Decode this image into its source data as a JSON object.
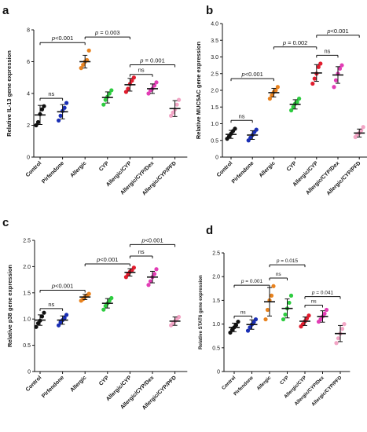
{
  "colors": [
    "#111111",
    "#1a2fb5",
    "#e8821e",
    "#2ecc40",
    "#e11d2e",
    "#e23db5",
    "#f2a5c5"
  ],
  "chart_data": [
    {
      "type": "scatter",
      "panel": "a",
      "ylabel": "Relative IL-13 gene expression",
      "ylim": [
        0,
        8
      ],
      "yticks": [
        0,
        2,
        4,
        6,
        8
      ],
      "categories": [
        "Control",
        "Pirfendone",
        "Allergic",
        "CYP",
        "Allergic/CYP",
        "Allergic/CYP/Dex",
        "Allergic/CYP/PFD"
      ],
      "series": [
        {
          "points": [
            2.0,
            2.2,
            2.7,
            3.0,
            3.2
          ],
          "mean": 2.65,
          "sd": 0.6
        },
        {
          "points": [
            2.3,
            2.6,
            2.9,
            3.1,
            3.4
          ],
          "mean": 2.85,
          "sd": 0.45
        },
        {
          "points": [
            5.6,
            5.8,
            6.0,
            6.1,
            6.7
          ],
          "mean": 6.0,
          "sd": 0.4
        },
        {
          "points": [
            3.3,
            3.6,
            3.8,
            4.0,
            4.2
          ],
          "mean": 3.75,
          "sd": 0.35
        },
        {
          "points": [
            4.1,
            4.3,
            4.6,
            4.8,
            5.0
          ],
          "mean": 4.55,
          "sd": 0.4
        },
        {
          "points": [
            4.0,
            4.2,
            4.3,
            4.5,
            4.7
          ],
          "mean": 4.3,
          "sd": 0.3
        },
        {
          "points": [
            2.6,
            2.8,
            3.0,
            3.3,
            3.6
          ],
          "mean": 3.05,
          "sd": 0.5
        }
      ],
      "brackets": [
        {
          "from": 0,
          "to": 1,
          "y": 3.7,
          "label": "ns"
        },
        {
          "from": 0,
          "to": 2,
          "y": 7.2,
          "label": "p<0.001"
        },
        {
          "from": 2,
          "to": 4,
          "y": 7.55,
          "label": "p = 0.003"
        },
        {
          "from": 4,
          "to": 5,
          "y": 5.2,
          "label": "ns"
        },
        {
          "from": 4,
          "to": 6,
          "y": 5.8,
          "label": "p = 0.001"
        }
      ]
    },
    {
      "type": "scatter",
      "panel": "b",
      "ylabel": "Relative MUC5AC gene expression",
      "ylim": [
        0,
        4
      ],
      "yticks": [
        0,
        0.5,
        1.0,
        1.5,
        2.0,
        2.5,
        3.0,
        3.5,
        4.0
      ],
      "categories": [
        "Control",
        "Pirfendone",
        "Allergic",
        "CYP",
        "Allergic/CYP",
        "Allergic/CYP/Dex",
        "Allergic/CYP/PFD"
      ],
      "series": [
        {
          "points": [
            0.55,
            0.62,
            0.7,
            0.78,
            0.85
          ],
          "mean": 0.68,
          "sd": 0.12
        },
        {
          "points": [
            0.5,
            0.58,
            0.66,
            0.75,
            0.82
          ],
          "mean": 0.66,
          "sd": 0.13
        },
        {
          "points": [
            1.75,
            1.85,
            1.95,
            2.0,
            2.1
          ],
          "mean": 1.93,
          "sd": 0.13
        },
        {
          "points": [
            1.4,
            1.5,
            1.6,
            1.65,
            1.75
          ],
          "mean": 1.58,
          "sd": 0.14
        },
        {
          "points": [
            2.2,
            2.35,
            2.5,
            2.7,
            2.8
          ],
          "mean": 2.52,
          "sd": 0.25
        },
        {
          "points": [
            2.1,
            2.3,
            2.5,
            2.65,
            2.75
          ],
          "mean": 2.46,
          "sd": 0.25
        },
        {
          "points": [
            0.6,
            0.68,
            0.72,
            0.8,
            0.9
          ],
          "mean": 0.72,
          "sd": 0.12
        }
      ],
      "brackets": [
        {
          "from": 0,
          "to": 1,
          "y": 1.1,
          "label": "ns"
        },
        {
          "from": 0,
          "to": 2,
          "y": 2.35,
          "label": "p<0.001"
        },
        {
          "from": 2,
          "to": 4,
          "y": 3.3,
          "label": "p = 0.002"
        },
        {
          "from": 4,
          "to": 5,
          "y": 3.05,
          "label": "ns"
        },
        {
          "from": 4,
          "to": 6,
          "y": 3.65,
          "label": "p<0.001"
        }
      ]
    },
    {
      "type": "scatter",
      "panel": "c",
      "ylabel": "Relative p38 gene expression",
      "ylim": [
        0,
        2.5
      ],
      "yticks": [
        0,
        0.5,
        1.0,
        1.5,
        2.0,
        2.5
      ],
      "categories": [
        "Control",
        "Pirfendone",
        "Allergic",
        "CYP",
        "Allergic/CYP",
        "Allergic/CYP/Dex",
        "Allergic/CYP/PFD"
      ],
      "series": [
        {
          "points": [
            0.85,
            0.92,
            0.97,
            1.05,
            1.12
          ],
          "mean": 0.98,
          "sd": 0.1
        },
        {
          "points": [
            0.88,
            0.94,
            0.98,
            1.02,
            1.08
          ],
          "mean": 0.98,
          "sd": 0.08
        },
        {
          "points": [
            1.35,
            1.38,
            1.42,
            1.45,
            1.48
          ],
          "mean": 1.42,
          "sd": 0.05
        },
        {
          "points": [
            1.18,
            1.25,
            1.3,
            1.35,
            1.4
          ],
          "mean": 1.3,
          "sd": 0.09
        },
        {
          "points": [
            1.8,
            1.85,
            1.9,
            1.93,
            1.98
          ],
          "mean": 1.89,
          "sd": 0.07
        },
        {
          "points": [
            1.65,
            1.72,
            1.8,
            1.86,
            1.95
          ],
          "mean": 1.8,
          "sd": 0.11
        },
        {
          "points": [
            0.88,
            0.92,
            0.96,
            1.0,
            1.04
          ],
          "mean": 0.96,
          "sd": 0.08
        }
      ],
      "brackets": [
        {
          "from": 0,
          "to": 1,
          "y": 1.2,
          "label": "ns"
        },
        {
          "from": 0,
          "to": 2,
          "y": 1.55,
          "label": "p<0.001"
        },
        {
          "from": 2,
          "to": 4,
          "y": 2.05,
          "label": "p<0.001"
        },
        {
          "from": 4,
          "to": 5,
          "y": 2.2,
          "label": "ns"
        },
        {
          "from": 4,
          "to": 6,
          "y": 2.42,
          "label": "p<0.001"
        }
      ]
    },
    {
      "type": "scatter",
      "panel": "d",
      "ylabel": "Relative STAT6 gene expression",
      "ylim": [
        0,
        2.5
      ],
      "yticks": [
        0,
        0.5,
        1.0,
        1.5,
        2.0,
        2.5
      ],
      "categories": [
        "Control",
        "Pirfendone",
        "Allergic",
        "CYP",
        "Allergic/CYP",
        "Allergic/CYP/Dex",
        "Allergic/CYP/PFD"
      ],
      "series": [
        {
          "points": [
            0.82,
            0.88,
            0.93,
            0.98,
            1.05
          ],
          "mean": 0.93,
          "sd": 0.09
        },
        {
          "points": [
            0.86,
            0.93,
            0.99,
            1.04,
            1.1
          ],
          "mean": 0.99,
          "sd": 0.1
        },
        {
          "points": [
            1.1,
            1.3,
            1.5,
            1.6,
            1.8
          ],
          "mean": 1.47,
          "sd": 0.3
        },
        {
          "points": [
            1.1,
            1.2,
            1.33,
            1.45,
            1.6
          ],
          "mean": 1.33,
          "sd": 0.2
        },
        {
          "points": [
            0.95,
            1.0,
            1.06,
            1.12,
            1.18
          ],
          "mean": 1.06,
          "sd": 0.09
        },
        {
          "points": [
            1.05,
            1.1,
            1.16,
            1.22,
            1.3
          ],
          "mean": 1.16,
          "sd": 0.12
        },
        {
          "points": [
            0.6,
            0.7,
            0.8,
            0.9,
            1.0
          ],
          "mean": 0.8,
          "sd": 0.17
        }
      ],
      "brackets": [
        {
          "from": 0,
          "to": 1,
          "y": 1.17,
          "label": "ns"
        },
        {
          "from": 0,
          "to": 2,
          "y": 1.82,
          "label": "p = 0.001"
        },
        {
          "from": 2,
          "to": 3,
          "y": 1.97,
          "label": "ns"
        },
        {
          "from": 2,
          "to": 4,
          "y": 2.25,
          "label": "p = 0.015"
        },
        {
          "from": 4,
          "to": 5,
          "y": 1.4,
          "label": "ns"
        },
        {
          "from": 4,
          "to": 6,
          "y": 1.58,
          "label": "p = 0.041"
        }
      ]
    }
  ]
}
